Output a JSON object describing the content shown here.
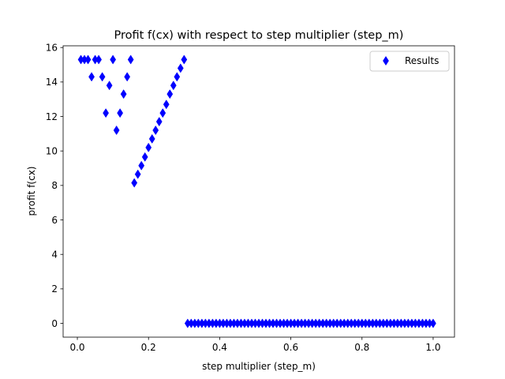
{
  "chart_data": {
    "type": "scatter",
    "title": "Profit f(cx) with respect to step multiplier (step_m)",
    "xlabel": "step multiplier (step_m)",
    "ylabel": "profit f(cx)",
    "xlim": [
      -0.04,
      1.06
    ],
    "ylim": [
      -0.8,
      16.1
    ],
    "xticks": [
      0.0,
      0.2,
      0.4,
      0.6,
      0.8,
      1.0
    ],
    "xtick_labels": [
      "0.0",
      "0.2",
      "0.4",
      "0.6",
      "0.8",
      "1.0"
    ],
    "yticks": [
      0,
      2,
      4,
      6,
      8,
      10,
      12,
      14,
      16
    ],
    "ytick_labels": [
      "0",
      "2",
      "4",
      "6",
      "8",
      "10",
      "12",
      "14",
      "16"
    ],
    "grid": false,
    "legend_position": "top-right",
    "marker": "thin-diamond",
    "color": "#0000ff",
    "series": [
      {
        "name": "Results",
        "points": [
          [
            0.01,
            15.3
          ],
          [
            0.02,
            15.3
          ],
          [
            0.03,
            15.3
          ],
          [
            0.04,
            14.3
          ],
          [
            0.05,
            15.3
          ],
          [
            0.06,
            15.3
          ],
          [
            0.07,
            14.3
          ],
          [
            0.08,
            12.2
          ],
          [
            0.09,
            13.8
          ],
          [
            0.1,
            15.3
          ],
          [
            0.11,
            11.2
          ],
          [
            0.12,
            12.2
          ],
          [
            0.13,
            13.3
          ],
          [
            0.14,
            14.3
          ],
          [
            0.15,
            15.3
          ],
          [
            0.16,
            8.15
          ],
          [
            0.17,
            8.65
          ],
          [
            0.18,
            9.15
          ],
          [
            0.19,
            9.65
          ],
          [
            0.2,
            10.2
          ],
          [
            0.21,
            10.7
          ],
          [
            0.22,
            11.2
          ],
          [
            0.23,
            11.7
          ],
          [
            0.24,
            12.2
          ],
          [
            0.25,
            12.7
          ],
          [
            0.26,
            13.3
          ],
          [
            0.27,
            13.8
          ],
          [
            0.28,
            14.3
          ],
          [
            0.29,
            14.8
          ],
          [
            0.3,
            15.3
          ],
          [
            0.31,
            0
          ],
          [
            0.32,
            0
          ],
          [
            0.33,
            0
          ],
          [
            0.34,
            0
          ],
          [
            0.35,
            0
          ],
          [
            0.36,
            0
          ],
          [
            0.37,
            0
          ],
          [
            0.38,
            0
          ],
          [
            0.39,
            0
          ],
          [
            0.4,
            0
          ],
          [
            0.41,
            0
          ],
          [
            0.42,
            0
          ],
          [
            0.43,
            0
          ],
          [
            0.44,
            0
          ],
          [
            0.45,
            0
          ],
          [
            0.46,
            0
          ],
          [
            0.47,
            0
          ],
          [
            0.48,
            0
          ],
          [
            0.49,
            0
          ],
          [
            0.5,
            0
          ],
          [
            0.51,
            0
          ],
          [
            0.52,
            0
          ],
          [
            0.53,
            0
          ],
          [
            0.54,
            0
          ],
          [
            0.55,
            0
          ],
          [
            0.56,
            0
          ],
          [
            0.57,
            0
          ],
          [
            0.58,
            0
          ],
          [
            0.59,
            0
          ],
          [
            0.6,
            0
          ],
          [
            0.61,
            0
          ],
          [
            0.62,
            0
          ],
          [
            0.63,
            0
          ],
          [
            0.64,
            0
          ],
          [
            0.65,
            0
          ],
          [
            0.66,
            0
          ],
          [
            0.67,
            0
          ],
          [
            0.68,
            0
          ],
          [
            0.69,
            0
          ],
          [
            0.7,
            0
          ],
          [
            0.71,
            0
          ],
          [
            0.72,
            0
          ],
          [
            0.73,
            0
          ],
          [
            0.74,
            0
          ],
          [
            0.75,
            0
          ],
          [
            0.76,
            0
          ],
          [
            0.77,
            0
          ],
          [
            0.78,
            0
          ],
          [
            0.79,
            0
          ],
          [
            0.8,
            0
          ],
          [
            0.81,
            0
          ],
          [
            0.82,
            0
          ],
          [
            0.83,
            0
          ],
          [
            0.84,
            0
          ],
          [
            0.85,
            0
          ],
          [
            0.86,
            0
          ],
          [
            0.87,
            0
          ],
          [
            0.88,
            0
          ],
          [
            0.89,
            0
          ],
          [
            0.9,
            0
          ],
          [
            0.91,
            0
          ],
          [
            0.92,
            0
          ],
          [
            0.93,
            0
          ],
          [
            0.94,
            0
          ],
          [
            0.95,
            0
          ],
          [
            0.96,
            0
          ],
          [
            0.97,
            0
          ],
          [
            0.98,
            0
          ],
          [
            0.99,
            0
          ],
          [
            1.0,
            0
          ]
        ]
      }
    ]
  }
}
